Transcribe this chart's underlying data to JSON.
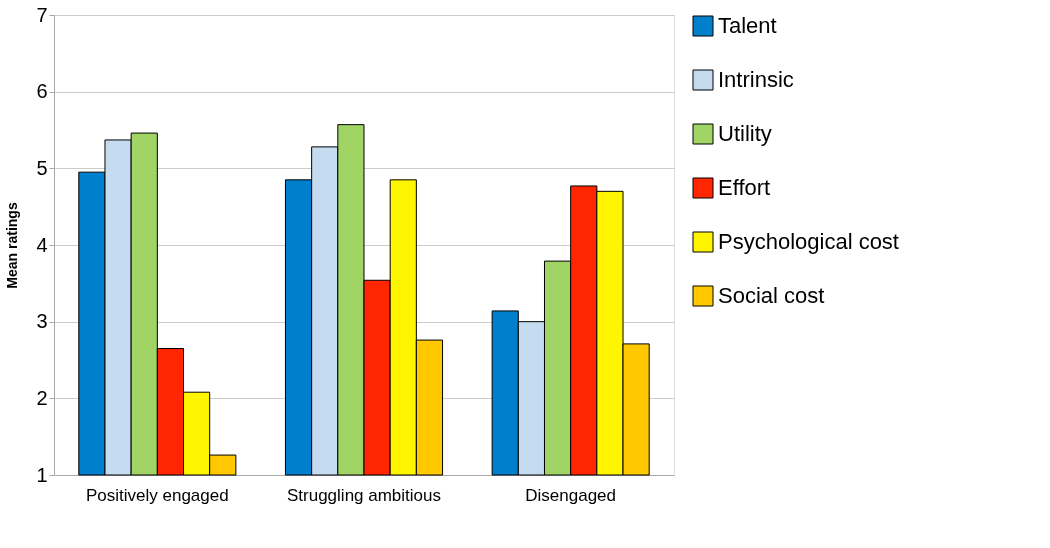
{
  "chart_data": {
    "type": "bar",
    "ylabel": "Mean ratings",
    "categories": [
      "Positively engaged",
      "Struggling ambitious",
      "Disengaged"
    ],
    "series": [
      {
        "name": "Talent",
        "color": "#0080cc",
        "values": [
          4.95,
          4.85,
          3.14
        ]
      },
      {
        "name": "Intrinsic",
        "color": "#c5dcf0",
        "values": [
          5.37,
          5.28,
          3.0
        ]
      },
      {
        "name": "Utility",
        "color": "#a0d464",
        "values": [
          5.46,
          5.57,
          3.79
        ]
      },
      {
        "name": "Effort",
        "color": "#ff2600",
        "values": [
          2.65,
          3.54,
          4.77
        ]
      },
      {
        "name": "Psychological cost",
        "color": "#fff500",
        "values": [
          2.08,
          4.85,
          4.7
        ]
      },
      {
        "name": "Social cost",
        "color": "#ffc800",
        "values": [
          1.26,
          2.76,
          2.71
        ]
      }
    ],
    "ylim": [
      1,
      7
    ],
    "yticks": [
      1,
      2,
      3,
      4,
      5,
      6,
      7
    ],
    "grid": "y",
    "legend": "right"
  }
}
